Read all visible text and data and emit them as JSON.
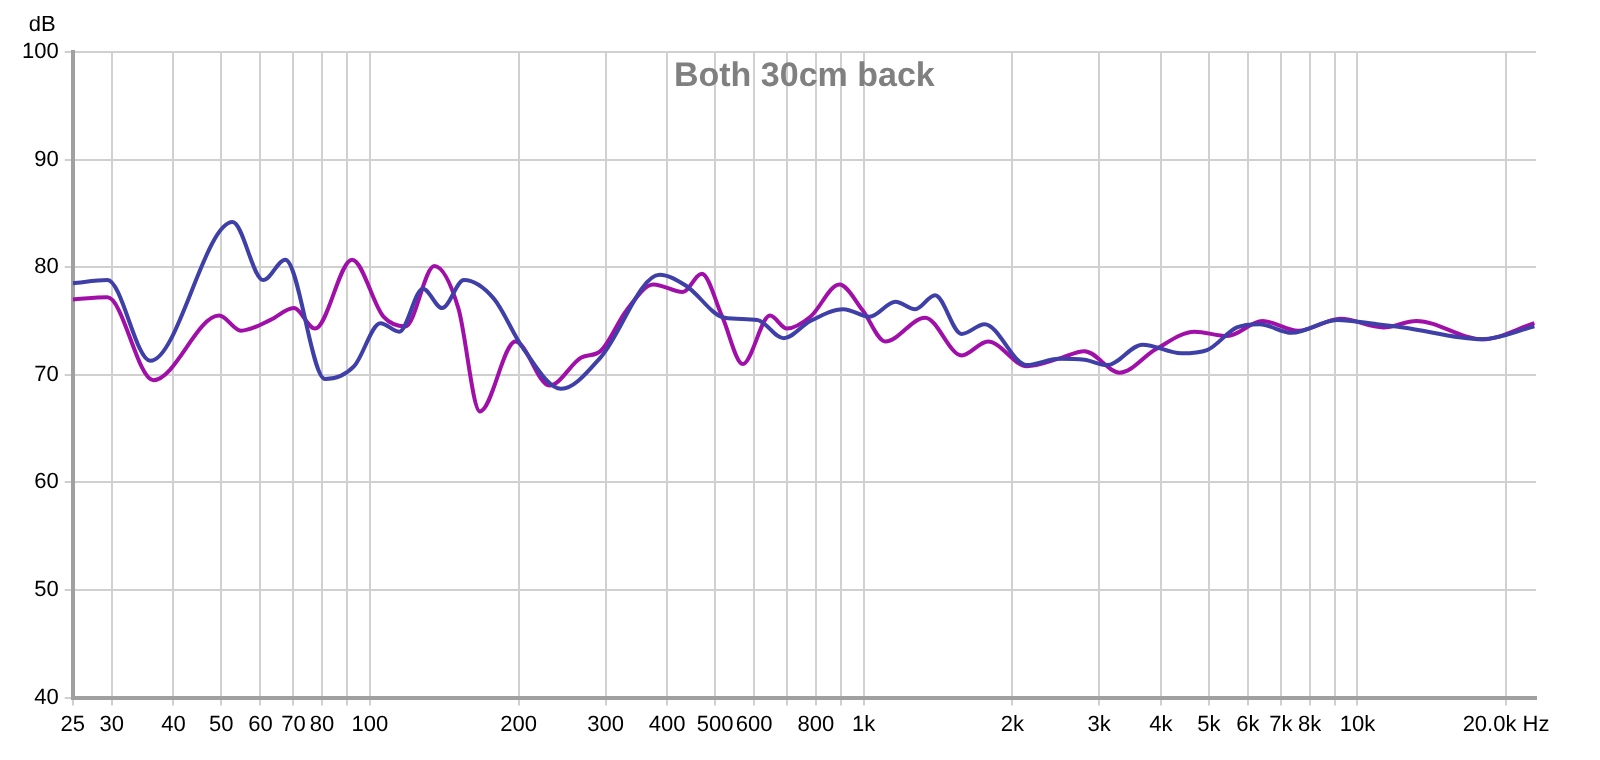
{
  "chart_data": {
    "type": "line",
    "title": "Both 30cm back",
    "ylabel": "dB",
    "xlim": [
      25,
      23000
    ],
    "ylim": [
      40,
      100
    ],
    "xticks": [
      25,
      30,
      40,
      50,
      60,
      70,
      80,
      {
        "value": 90,
        "label": null
      },
      100,
      200,
      300,
      400,
      500,
      600,
      {
        "value": 700,
        "label": null
      },
      800,
      {
        "value": 900,
        "label": null
      },
      {
        "value": 1000,
        "label": "1k"
      },
      {
        "value": 2000,
        "label": "2k"
      },
      {
        "value": 3000,
        "label": "3k"
      },
      {
        "value": 4000,
        "label": "4k"
      },
      {
        "value": 5000,
        "label": "5k"
      },
      {
        "value": 6000,
        "label": "6k"
      },
      {
        "value": 7000,
        "label": "7k"
      },
      {
        "value": 8000,
        "label": "8k"
      },
      {
        "value": 9000,
        "label": null
      },
      {
        "value": 10000,
        "label": "10k"
      },
      {
        "value": 20000,
        "label": "20.0k Hz"
      }
    ],
    "yticks": [
      40,
      50,
      60,
      70,
      80,
      90,
      100
    ],
    "log": "x",
    "grid": true,
    "legend": false,
    "marker": "none",
    "line_style": "solid",
    "series": [
      {
        "color": "#3f3fa8",
        "x": [
          25,
          29.4,
          35.9,
          52.7,
          60.8,
          67.4,
          81.1,
          92.9,
          105,
          114.6,
          128,
          140,
          155,
          178,
          204,
          244,
          293,
          386,
          436,
          523,
          609,
          689,
          780,
          910,
          1027,
          1160,
          1272,
          1395,
          1579,
          1757,
          2141,
          2485,
          2800,
          3110,
          3670,
          4400,
          4960,
          5700,
          6330,
          7360,
          9100,
          10950,
          12380,
          17900,
          22830
        ],
        "values": [
          78.5,
          78.8,
          71.3,
          84.2,
          78.8,
          80.7,
          69.6,
          70.8,
          74.8,
          74,
          78,
          76.2,
          78.8,
          77.1,
          72.5,
          68.7,
          71.6,
          79.3,
          78.3,
          75.3,
          75.1,
          73.4,
          75,
          76.1,
          75.4,
          76.8,
          76.1,
          77.4,
          73.8,
          74.7,
          70.9,
          71.5,
          71.4,
          70.9,
          72.8,
          72,
          72.3,
          74.4,
          74.7,
          73.9,
          75.1,
          74.7,
          74.4,
          73.3,
          74.5
        ]
      },
      {
        "color": "#a010a8",
        "x": [
          25,
          29.4,
          36.4,
          49.5,
          54.8,
          62.9,
          70.1,
          77.4,
          92,
          106.5,
          118,
          135,
          151,
          167,
          197,
          231,
          268,
          293,
          331,
          375,
          430,
          470,
          517,
          569,
          646,
          699,
          780,
          893,
          995,
          1106,
          1332,
          1579,
          1785,
          2141,
          2485,
          2800,
          3300,
          3910,
          4680,
          5450,
          6420,
          7590,
          9240,
          11290,
          13170,
          17900,
          22830
        ],
        "values": [
          77,
          77.2,
          69.5,
          75.5,
          74.1,
          75.1,
          76.2,
          74.3,
          80.7,
          75.4,
          74.5,
          80.1,
          76.2,
          66.6,
          73.1,
          69,
          71.6,
          72.2,
          76,
          78.4,
          77.7,
          79.4,
          75.4,
          71,
          75.5,
          74.3,
          75.4,
          78.4,
          76,
          73.1,
          75.3,
          71.8,
          73.1,
          70.8,
          71.5,
          72.2,
          70.2,
          72.4,
          74,
          73.6,
          75,
          74.1,
          75.2,
          74.4,
          75,
          73.3,
          74.8
        ]
      }
    ]
  }
}
